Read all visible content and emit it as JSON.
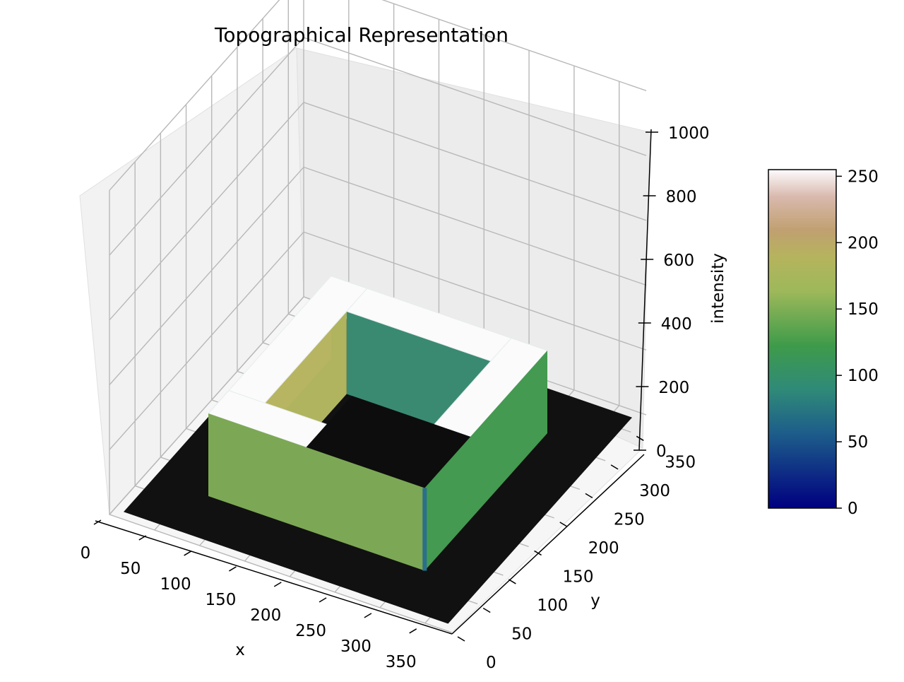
{
  "chart_data": {
    "type": "surface3d",
    "title": "Topographical Representation",
    "xlabel": "x",
    "ylabel": "y",
    "zlabel": "intensity",
    "x_ticks": [
      "0",
      "50",
      "100",
      "150",
      "200",
      "250",
      "300",
      "350"
    ],
    "y_ticks": [
      "0",
      "50",
      "100",
      "150",
      "200",
      "250",
      "300",
      "350"
    ],
    "z_ticks": [
      "0",
      "200",
      "400",
      "600",
      "800",
      "1000"
    ],
    "xlim": [
      0,
      380
    ],
    "ylim": [
      0,
      380
    ],
    "zlim": [
      0,
      1000
    ],
    "grid": true,
    "colormap": "gist_earth",
    "colorbar": {
      "ticks": [
        "0",
        "50",
        "100",
        "150",
        "200",
        "250"
      ],
      "range": [
        0,
        255
      ]
    },
    "surface": {
      "description_values": "binary square frame",
      "base_value": 0,
      "frame_value": 255,
      "outer_square_x": [
        70,
        310
      ],
      "outer_square_y": [
        70,
        310
      ],
      "inner_square_x": [
        110,
        270
      ],
      "inner_square_y": [
        110,
        270
      ]
    }
  }
}
